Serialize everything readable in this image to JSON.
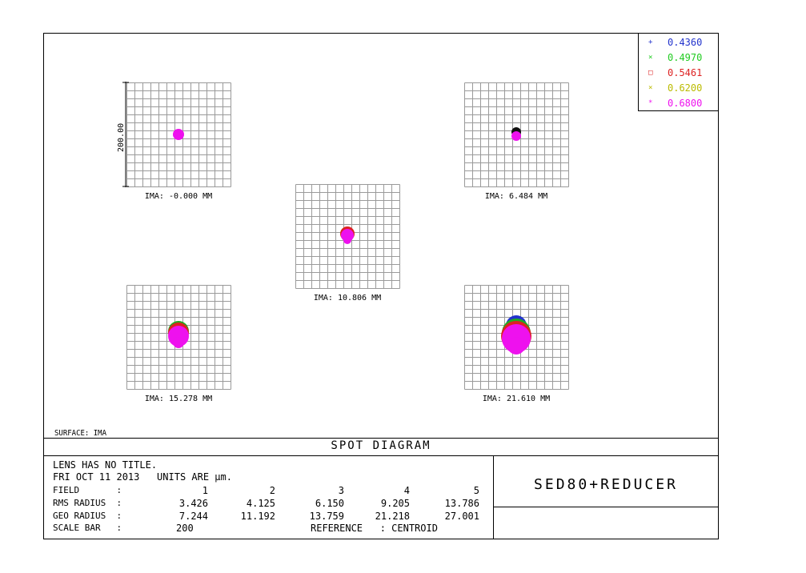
{
  "legend": [
    {
      "symbol": "+",
      "value": "0.4360",
      "color": "#2233cc"
    },
    {
      "symbol": "×",
      "value": "0.4970",
      "color": "#22cc22"
    },
    {
      "symbol": "□",
      "value": "0.5461",
      "color": "#dd2222"
    },
    {
      "symbol": "×",
      "value": "0.6200",
      "color": "#bbbb00"
    },
    {
      "symbol": "*",
      "value": "0.6800",
      "color": "#ee11ee"
    }
  ],
  "scale_label": "200.00",
  "panels": [
    {
      "label": "IMA: -0.000 MM"
    },
    {
      "label": "IMA: 6.484 MM"
    },
    {
      "label": "IMA: 10.806 MM"
    },
    {
      "label": "IMA: 15.278 MM"
    },
    {
      "label": "IMA: 21.610 MM"
    }
  ],
  "surface_label": "SURFACE: IMA",
  "title": "SPOT DIAGRAM",
  "info": {
    "line1": "LENS HAS NO TITLE.",
    "line2": "FRI OCT 11 2013   UNITS ARE µm.",
    "field_label": "FIELD       :",
    "field_values": [
      "1",
      "2",
      "3",
      "4",
      "5"
    ],
    "rms_label": "RMS RADIUS  :",
    "rms_values": [
      "3.426",
      "4.125",
      "6.150",
      "9.205",
      "13.786"
    ],
    "geo_label": "GEO RADIUS  :",
    "geo_values": [
      "7.244",
      "11.192",
      "13.759",
      "21.218",
      "27.001"
    ],
    "scale_label": "SCALE BAR   :",
    "scale_value": "200",
    "reference": "REFERENCE   : CENTROID"
  },
  "lens_name": "SED80+REDUCER"
}
